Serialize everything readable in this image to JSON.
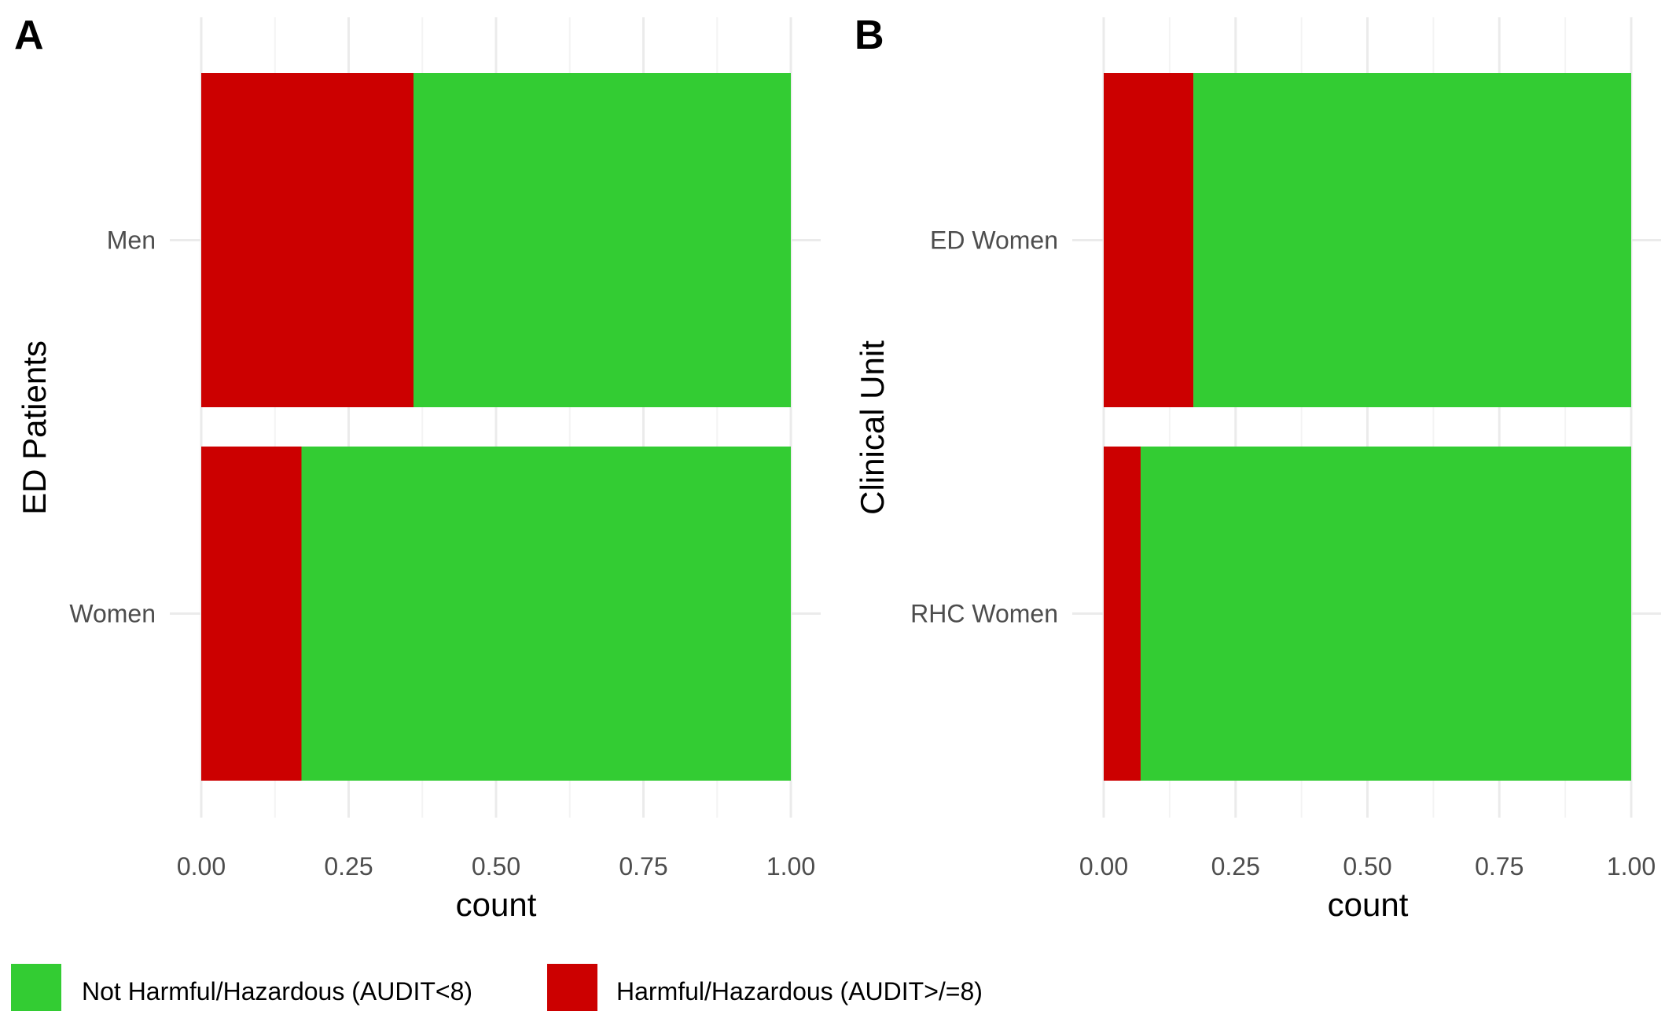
{
  "colors": {
    "not_harmful": "#33cc33",
    "harmful": "#cc0000",
    "grid_major": "#ebebeb",
    "grid_minor": "#f4f4f4"
  },
  "legend": {
    "items": [
      {
        "key": "not_harmful",
        "label": "Not Harmful/Hazardous (AUDIT<8)"
      },
      {
        "key": "harmful",
        "label": "Harmful/Hazardous (AUDIT>/=8)"
      }
    ]
  },
  "chart_data": [
    {
      "panel": "A",
      "type": "bar",
      "orientation": "horizontal",
      "stacked": true,
      "xlabel": "count",
      "ylabel": "ED Patients",
      "xlim": [
        0,
        1
      ],
      "xticks": [
        "0.00",
        "0.25",
        "0.50",
        "0.75",
        "1.00"
      ],
      "categories": [
        "Men",
        "Women"
      ],
      "series": [
        {
          "name": "Harmful/Hazardous (AUDIT>/=8)",
          "color_key": "harmful",
          "values": [
            0.36,
            0.17
          ]
        },
        {
          "name": "Not Harmful/Hazardous (AUDIT<8)",
          "color_key": "not_harmful",
          "values": [
            0.64,
            0.83
          ]
        }
      ],
      "grid": true,
      "legend_position": "bottom"
    },
    {
      "panel": "B",
      "type": "bar",
      "orientation": "horizontal",
      "stacked": true,
      "xlabel": "count",
      "ylabel": "Clinical Unit",
      "xlim": [
        0,
        1
      ],
      "xticks": [
        "0.00",
        "0.25",
        "0.50",
        "0.75",
        "1.00"
      ],
      "categories": [
        "ED Women",
        "RHC Women"
      ],
      "series": [
        {
          "name": "Harmful/Hazardous (AUDIT>/=8)",
          "color_key": "harmful",
          "values": [
            0.17,
            0.07
          ]
        },
        {
          "name": "Not Harmful/Hazardous (AUDIT<8)",
          "color_key": "not_harmful",
          "values": [
            0.83,
            0.93
          ]
        }
      ],
      "grid": true,
      "legend_position": "bottom"
    }
  ]
}
